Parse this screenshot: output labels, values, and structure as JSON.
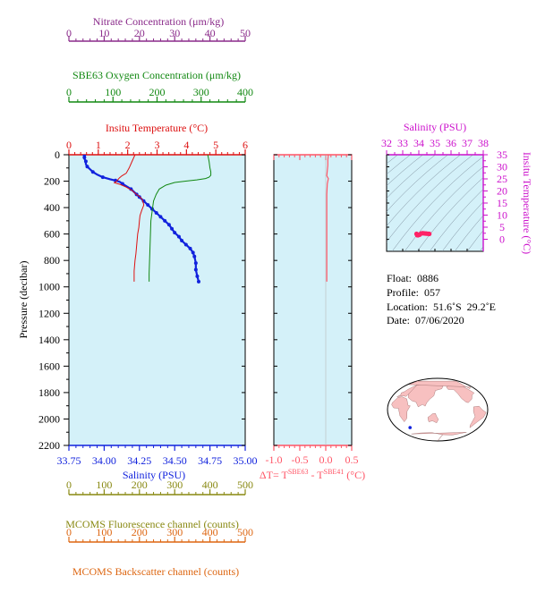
{
  "colors": {
    "nitrate": "#8a2a8a",
    "oxygen": "#118811",
    "temperature": "#dd1111",
    "salinity": "#1122dd",
    "fluorescence": "#888811",
    "backscatter": "#dd6611",
    "ts_axis": "#cc11cc",
    "dt": "#ff5566",
    "panel_bg": "#d4f1f9"
  },
  "chart_data": [
    {
      "type": "line",
      "panel": "profile",
      "ylabel": "Pressure (decibar)",
      "ylim": [
        2200,
        0
      ],
      "y_ticks": [
        0,
        200,
        400,
        600,
        800,
        1000,
        1200,
        1400,
        1600,
        1800,
        2000,
        2200
      ],
      "axes": {
        "nitrate": {
          "label": "Nitrate Concentration (μm/kg)",
          "lim": [
            0,
            50
          ],
          "ticks": [
            0,
            10,
            20,
            30,
            40,
            50
          ]
        },
        "oxygen": {
          "label": "SBE63 Oxygen Concentration (μm/kg)",
          "lim": [
            0,
            400
          ],
          "ticks": [
            0,
            100,
            200,
            300,
            400
          ]
        },
        "temperature": {
          "label": "Insitu Temperature (°C)",
          "lim": [
            0,
            6
          ],
          "ticks": [
            0,
            1,
            2,
            3,
            4,
            5,
            6
          ]
        },
        "salinity": {
          "label": "Salinity (PSU)",
          "lim": [
            33.75,
            35.0
          ],
          "ticks": [
            "33.75",
            "34.00",
            "34.25",
            "34.50",
            "34.75",
            "35.00"
          ]
        },
        "fluorescence": {
          "label": "MCOMS Fluorescence channel (counts)",
          "lim": [
            0,
            500
          ],
          "ticks": [
            0,
            100,
            200,
            300,
            400,
            500
          ]
        },
        "backscatter": {
          "label": "MCOMS Backscatter channel (counts)",
          "lim": [
            0,
            500
          ],
          "ticks": [
            0,
            100,
            200,
            300,
            400,
            500
          ]
        }
      },
      "series": [
        {
          "key": "salinity",
          "x": [
            33.86,
            33.86,
            33.86,
            33.86,
            33.87,
            33.87,
            33.88,
            33.9,
            33.92,
            33.95,
            33.99,
            34.04,
            34.08,
            34.11,
            34.13,
            34.16,
            34.19,
            34.21,
            34.23,
            34.25,
            34.28,
            34.31,
            34.34,
            34.37,
            34.4,
            34.43,
            34.46,
            34.48,
            34.5,
            34.53,
            34.55,
            34.58,
            34.61,
            34.63,
            34.64,
            34.65,
            34.65,
            34.66,
            34.67
          ],
          "y": [
            0,
            10,
            20,
            30,
            50,
            70,
            90,
            110,
            130,
            150,
            170,
            185,
            195,
            205,
            220,
            240,
            260,
            280,
            300,
            320,
            350,
            380,
            410,
            440,
            470,
            500,
            530,
            560,
            590,
            620,
            650,
            680,
            710,
            740,
            770,
            820,
            870,
            920,
            960
          ]
        },
        {
          "key": "temperature",
          "x": [
            2.25,
            2.15,
            2.05,
            1.95,
            1.8,
            1.72,
            1.68,
            1.65,
            1.6,
            1.55,
            1.75,
            1.95,
            2.15,
            2.3,
            2.42,
            2.5,
            2.55,
            2.48,
            2.42,
            2.4,
            2.38,
            2.34,
            2.32,
            2.3,
            2.28,
            2.25,
            2.22,
            2.22
          ],
          "y": [
            0,
            50,
            100,
            140,
            160,
            175,
            185,
            195,
            205,
            212,
            225,
            245,
            270,
            300,
            320,
            340,
            380,
            420,
            460,
            500,
            550,
            600,
            650,
            700,
            750,
            800,
            880,
            960
          ]
        },
        {
          "key": "oxygen",
          "x": [
            315,
            318,
            320,
            322,
            322,
            318,
            310,
            290,
            265,
            240,
            220,
            205,
            198,
            192,
            190,
            188,
            186,
            185,
            184,
            183,
            182,
            182
          ],
          "y": [
            0,
            50,
            100,
            130,
            155,
            170,
            180,
            190,
            200,
            210,
            230,
            260,
            300,
            350,
            400,
            450,
            500,
            600,
            700,
            800,
            900,
            960
          ]
        }
      ]
    },
    {
      "type": "line",
      "panel": "delta_t",
      "xlabel_main": "ΔT= T",
      "xlabel_sup1": "SBE63",
      "xlabel_mid": " - T",
      "xlabel_sup2": "SBE41",
      "xlabel_unit": " (°C)",
      "xlim": [
        -1.0,
        0.5
      ],
      "x_ticks": [
        "-1.0",
        "-0.5",
        "0.0",
        "0.5"
      ],
      "ylim": [
        2200,
        0
      ],
      "series": [
        {
          "key": "dt",
          "x": [
            0.05,
            0.04,
            0.04,
            0.03,
            0.02,
            0.05,
            0.03,
            0.02,
            0.02,
            0.02,
            0.02,
            0.02,
            0.02
          ],
          "y": [
            0,
            40,
            80,
            120,
            160,
            180,
            220,
            300,
            400,
            500,
            700,
            850,
            960
          ]
        }
      ]
    },
    {
      "type": "scatter",
      "panel": "ts_diagram",
      "title": "Salinity (PSU)",
      "xlim": [
        32,
        38
      ],
      "x_ticks": [
        32,
        33,
        34,
        35,
        36,
        37,
        38
      ],
      "ylabel": "Insitu Temperature (°C)",
      "ylim": [
        -5,
        35
      ],
      "y_ticks": [
        0,
        5,
        10,
        15,
        20,
        25,
        30,
        35
      ],
      "points": {
        "salinity": [
          33.86,
          33.87,
          33.9,
          33.95,
          34.05,
          34.15,
          34.25,
          34.35,
          34.45,
          34.55,
          34.65
        ],
        "temperature": [
          2.25,
          2.15,
          1.7,
          1.65,
          1.9,
          2.4,
          2.5,
          2.42,
          2.35,
          2.3,
          2.22
        ]
      }
    }
  ],
  "info": {
    "float": "Float:  0886",
    "profile": "Profile:  057",
    "location": "Location:  51.6˚S  29.2˚E",
    "date": "Date:  07/06/2020"
  },
  "map": {
    "marker_lat": -51.6,
    "marker_lon": 29.2
  }
}
